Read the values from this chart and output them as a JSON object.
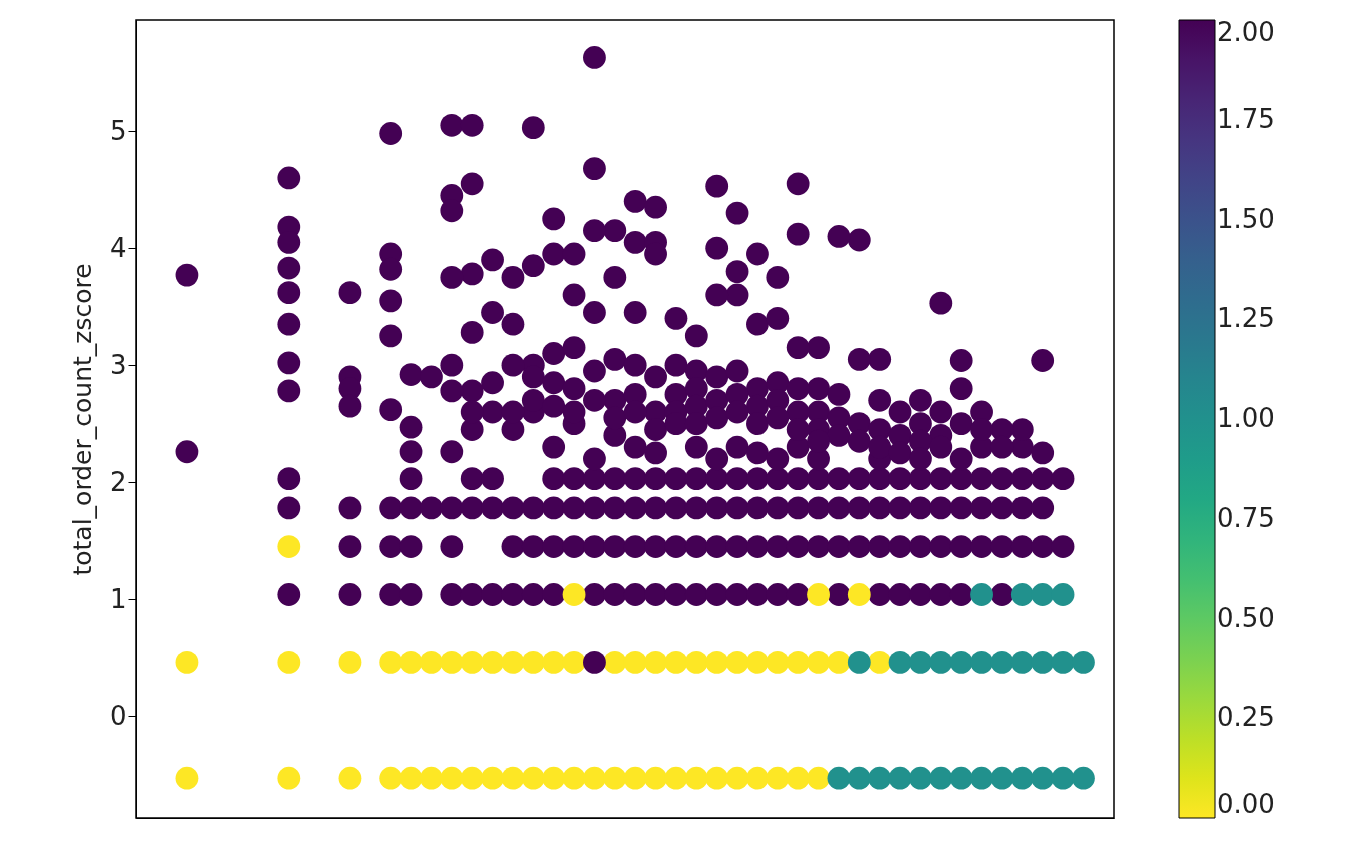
{
  "chart_data": {
    "type": "scatter",
    "ylabel": "total_order_count_zscore",
    "categories": [
      null,
      null,
      null,
      null,
      null,
      null,
      null,
      null,
      null,
      null,
      null,
      null,
      null,
      null,
      null,
      null,
      null,
      null,
      null,
      null,
      null,
      null,
      null,
      null,
      null,
      null,
      null,
      null,
      null,
      null,
      null,
      null,
      null,
      null,
      null,
      null,
      null,
      null,
      null,
      null,
      null,
      null,
      null,
      null,
      null,
      null,
      null,
      null
    ],
    "ylim": [
      -0.87,
      5.95
    ],
    "yticks": [
      0,
      1,
      2,
      3,
      4,
      5
    ],
    "grid": false,
    "marker": "circle",
    "tick_labels": "y",
    "clim": [
      0,
      2
    ],
    "cticks": [
      {
        "value": 0,
        "label": "0.00"
      },
      {
        "value": 0.25,
        "label": "0.25"
      },
      {
        "value": 0.5,
        "label": "0.50"
      },
      {
        "value": 0.75,
        "label": "0.75"
      },
      {
        "value": 1,
        "label": "1.00"
      },
      {
        "value": 1.25,
        "label": "1.25"
      },
      {
        "value": 1.5,
        "label": "1.50"
      },
      {
        "value": 1.75,
        "label": "1.75"
      },
      {
        "value": 2,
        "label": "2.00"
      }
    ],
    "series": [
      {
        "values": [
          null,
          null,
          -0.53,
          null,
          null,
          null,
          null,
          -0.53,
          null,
          null,
          -0.53,
          null,
          -0.53,
          -0.53,
          -0.53,
          -0.53,
          -0.53,
          -0.53,
          -0.53,
          -0.53,
          -0.53,
          -0.53,
          -0.53,
          -0.53,
          -0.53,
          -0.53,
          -0.53,
          -0.53,
          -0.53,
          -0.53,
          -0.53,
          -0.53,
          -0.53,
          -0.53,
          null,
          null,
          null,
          null,
          null,
          null,
          null,
          null,
          null,
          null,
          null,
          null,
          null,
          null
        ],
        "cvalues": [
          null,
          null,
          0,
          null,
          null,
          null,
          null,
          0,
          null,
          null,
          0,
          null,
          0,
          0,
          0,
          0,
          0,
          0,
          0,
          0,
          0,
          0,
          0,
          0,
          0,
          0,
          0,
          0,
          0,
          0,
          0,
          0,
          0,
          0,
          null,
          null,
          null,
          null,
          null,
          null,
          null,
          null,
          null,
          null,
          null,
          null,
          null,
          null
        ]
      },
      {
        "values": [
          null,
          null,
          null,
          null,
          null,
          null,
          null,
          null,
          null,
          null,
          null,
          null,
          null,
          null,
          null,
          null,
          null,
          null,
          null,
          null,
          null,
          null,
          null,
          null,
          null,
          null,
          null,
          null,
          null,
          null,
          null,
          null,
          null,
          null,
          -0.53,
          -0.53,
          -0.53,
          -0.53,
          -0.53,
          -0.53,
          -0.53,
          -0.53,
          -0.53,
          -0.53,
          -0.53,
          -0.53,
          -0.53,
          null
        ],
        "cvalues": [
          null,
          null,
          null,
          null,
          null,
          null,
          null,
          null,
          null,
          null,
          null,
          null,
          null,
          null,
          null,
          null,
          null,
          null,
          null,
          null,
          null,
          null,
          null,
          null,
          null,
          null,
          null,
          null,
          null,
          null,
          null,
          null,
          null,
          null,
          1,
          1,
          1,
          1,
          1,
          1,
          1,
          1,
          1,
          1,
          1,
          1,
          1,
          null
        ]
      },
      {
        "values": [
          null,
          null,
          0.46,
          null,
          null,
          null,
          null,
          0.46,
          null,
          null,
          0.46,
          null,
          0.46,
          0.46,
          0.46,
          0.46,
          0.46,
          0.46,
          0.46,
          0.46,
          0.46,
          0.46,
          null,
          0.46,
          0.46,
          0.46,
          0.46,
          0.46,
          0.46,
          0.46,
          0.46,
          0.46,
          0.46,
          0.46,
          0.46,
          null,
          0.46,
          null,
          null,
          null,
          null,
          null,
          null,
          null,
          null,
          null,
          null,
          null
        ],
        "cvalues": [
          null,
          null,
          0,
          null,
          null,
          null,
          null,
          0,
          null,
          null,
          0,
          null,
          0,
          0,
          0,
          0,
          0,
          0,
          0,
          0,
          0,
          0,
          null,
          0,
          0,
          0,
          0,
          0,
          0,
          0,
          0,
          0,
          0,
          0,
          0,
          null,
          0,
          null,
          null,
          null,
          null,
          null,
          null,
          null,
          null,
          null,
          null,
          null
        ]
      },
      {
        "values": [
          null,
          null,
          null,
          null,
          null,
          null,
          null,
          null,
          null,
          null,
          null,
          null,
          null,
          null,
          null,
          null,
          null,
          null,
          null,
          null,
          null,
          null,
          0.46,
          null,
          null,
          null,
          null,
          null,
          null,
          null,
          null,
          null,
          null,
          null,
          null,
          null,
          null,
          null,
          null,
          null,
          null,
          null,
          null,
          null,
          null,
          null,
          null,
          null
        ],
        "cvalues": [
          null,
          null,
          null,
          null,
          null,
          null,
          null,
          null,
          null,
          null,
          null,
          null,
          null,
          null,
          null,
          null,
          null,
          null,
          null,
          null,
          null,
          null,
          2,
          null,
          null,
          null,
          null,
          null,
          null,
          null,
          null,
          null,
          null,
          null,
          null,
          null,
          null,
          null,
          null,
          null,
          null,
          null,
          null,
          null,
          null,
          null,
          null,
          null
        ]
      },
      {
        "values": [
          null,
          null,
          null,
          null,
          null,
          null,
          null,
          null,
          null,
          null,
          null,
          null,
          null,
          null,
          null,
          null,
          null,
          null,
          null,
          null,
          null,
          null,
          null,
          null,
          null,
          null,
          null,
          null,
          null,
          null,
          null,
          null,
          null,
          null,
          null,
          0.46,
          null,
          0.46,
          0.46,
          0.46,
          0.46,
          0.46,
          0.46,
          0.46,
          0.46,
          0.46,
          0.46,
          null
        ],
        "cvalues": [
          null,
          null,
          null,
          null,
          null,
          null,
          null,
          null,
          null,
          null,
          null,
          null,
          null,
          null,
          null,
          null,
          null,
          null,
          null,
          null,
          null,
          null,
          null,
          null,
          null,
          null,
          null,
          null,
          null,
          null,
          null,
          null,
          null,
          null,
          null,
          1,
          null,
          1,
          1,
          1,
          1,
          1,
          1,
          1,
          1,
          1,
          1,
          null
        ]
      },
      {
        "values": [
          null,
          null,
          null,
          null,
          null,
          null,
          null,
          1.04,
          null,
          null,
          1.04,
          null,
          1.04,
          1.04,
          null,
          1.04,
          1.04,
          1.04,
          1.04,
          1.04,
          1.04,
          null,
          1.04,
          1.04,
          1.04,
          1.04,
          1.04,
          1.04,
          1.04,
          1.04,
          1.04,
          1.04,
          1.04,
          null,
          1.04,
          null,
          1.04,
          1.04,
          1.04,
          1.04,
          1.04,
          null,
          1.04,
          null,
          null,
          null,
          null,
          null
        ],
        "cvalues": [
          null,
          null,
          null,
          null,
          null,
          null,
          null,
          2,
          null,
          null,
          2,
          null,
          2,
          2,
          null,
          2,
          2,
          2,
          2,
          2,
          2,
          null,
          2,
          2,
          2,
          2,
          2,
          2,
          2,
          2,
          2,
          2,
          2,
          null,
          2,
          null,
          2,
          2,
          2,
          2,
          2,
          null,
          2,
          null,
          null,
          null,
          null,
          null
        ]
      },
      {
        "values": [
          null,
          null,
          null,
          null,
          null,
          null,
          null,
          null,
          null,
          null,
          null,
          null,
          null,
          null,
          null,
          null,
          null,
          null,
          null,
          null,
          null,
          1.04,
          null,
          null,
          null,
          null,
          null,
          null,
          null,
          null,
          null,
          null,
          null,
          1.04,
          null,
          1.04,
          null,
          null,
          null,
          null,
          null,
          null,
          null,
          null,
          null,
          null,
          null,
          null
        ],
        "cvalues": [
          null,
          null,
          null,
          null,
          null,
          null,
          null,
          null,
          null,
          null,
          null,
          null,
          null,
          null,
          null,
          null,
          null,
          null,
          null,
          null,
          null,
          0,
          null,
          null,
          null,
          null,
          null,
          null,
          null,
          null,
          null,
          null,
          null,
          0,
          null,
          0,
          null,
          null,
          null,
          null,
          null,
          null,
          null,
          null,
          null,
          null,
          null,
          null
        ]
      },
      {
        "values": [
          null,
          null,
          null,
          null,
          null,
          null,
          null,
          null,
          null,
          null,
          null,
          null,
          null,
          null,
          null,
          null,
          null,
          null,
          null,
          null,
          null,
          null,
          null,
          null,
          null,
          null,
          null,
          null,
          null,
          null,
          null,
          null,
          null,
          null,
          null,
          null,
          null,
          null,
          null,
          null,
          null,
          1.04,
          null,
          1.04,
          1.04,
          1.04,
          null,
          null
        ],
        "cvalues": [
          null,
          null,
          null,
          null,
          null,
          null,
          null,
          null,
          null,
          null,
          null,
          null,
          null,
          null,
          null,
          null,
          null,
          null,
          null,
          null,
          null,
          null,
          null,
          null,
          null,
          null,
          null,
          null,
          null,
          null,
          null,
          null,
          null,
          null,
          null,
          null,
          null,
          null,
          null,
          null,
          null,
          1,
          null,
          1,
          1,
          1,
          null,
          null
        ]
      },
      {
        "values": [
          null,
          null,
          null,
          null,
          null,
          null,
          null,
          1.45,
          null,
          null,
          null,
          null,
          null,
          null,
          null,
          null,
          null,
          null,
          null,
          null,
          null,
          null,
          null,
          null,
          null,
          null,
          null,
          null,
          null,
          null,
          null,
          null,
          null,
          null,
          null,
          null,
          null,
          null,
          null,
          null,
          null,
          null,
          null,
          null,
          null,
          null,
          null,
          null
        ],
        "cvalues": [
          null,
          null,
          null,
          null,
          null,
          null,
          null,
          0,
          null,
          null,
          null,
          null,
          null,
          null,
          null,
          null,
          null,
          null,
          null,
          null,
          null,
          null,
          null,
          null,
          null,
          null,
          null,
          null,
          null,
          null,
          null,
          null,
          null,
          null,
          null,
          null,
          null,
          null,
          null,
          null,
          null,
          null,
          null,
          null,
          null,
          null,
          null,
          null
        ]
      },
      {
        "values": [
          null,
          null,
          null,
          null,
          null,
          null,
          null,
          null,
          null,
          null,
          1.45,
          null,
          1.45,
          1.45,
          null,
          1.45,
          null,
          null,
          1.45,
          1.45,
          1.45,
          1.45,
          1.45,
          1.45,
          1.45,
          1.45,
          1.45,
          1.45,
          1.45,
          1.45,
          1.45,
          1.45,
          1.45,
          1.45,
          1.45,
          1.45,
          1.45,
          1.45,
          1.45,
          1.45,
          1.45,
          1.45,
          1.45,
          1.45,
          1.45,
          1.45,
          null,
          null
        ],
        "cvalues": [
          null,
          null,
          null,
          null,
          null,
          null,
          null,
          null,
          null,
          null,
          2,
          null,
          2,
          2,
          null,
          2,
          null,
          null,
          2,
          2,
          2,
          2,
          2,
          2,
          2,
          2,
          2,
          2,
          2,
          2,
          2,
          2,
          2,
          2,
          2,
          2,
          2,
          2,
          2,
          2,
          2,
          2,
          2,
          2,
          2,
          2,
          null,
          null
        ]
      },
      {
        "values": [
          null,
          null,
          null,
          null,
          null,
          null,
          null,
          1.78,
          null,
          null,
          1.78,
          null,
          1.78,
          1.78,
          1.78,
          1.78,
          1.78,
          1.78,
          1.78,
          1.78,
          1.78,
          1.78,
          1.78,
          1.78,
          1.78,
          1.78,
          1.78,
          1.78,
          1.78,
          1.78,
          1.78,
          1.78,
          1.78,
          1.78,
          1.78,
          1.78,
          1.78,
          1.78,
          1.78,
          1.78,
          1.78,
          1.78,
          1.78,
          1.78,
          1.78,
          null,
          null,
          null
        ],
        "cvalues": [
          null,
          null,
          null,
          null,
          null,
          null,
          null,
          2,
          null,
          null,
          2,
          null,
          2,
          2,
          2,
          2,
          2,
          2,
          2,
          2,
          2,
          2,
          2,
          2,
          2,
          2,
          2,
          2,
          2,
          2,
          2,
          2,
          2,
          2,
          2,
          2,
          2,
          2,
          2,
          2,
          2,
          2,
          2,
          2,
          2,
          null,
          null,
          null
        ]
      },
      {
        "values": [
          null,
          null,
          null,
          null,
          null,
          null,
          null,
          2.03,
          null,
          null,
          null,
          null,
          null,
          2.03,
          null,
          null,
          2.03,
          2.03,
          null,
          null,
          2.03,
          2.03,
          2.03,
          2.03,
          2.03,
          2.03,
          2.03,
          2.03,
          2.03,
          2.03,
          2.03,
          2.03,
          2.03,
          2.03,
          2.03,
          2.03,
          2.03,
          2.03,
          2.03,
          2.03,
          2.03,
          2.03,
          2.03,
          2.03,
          2.03,
          2.03,
          null,
          null
        ],
        "cvalues": [
          null,
          null,
          null,
          null,
          null,
          null,
          null,
          2,
          null,
          null,
          null,
          null,
          null,
          2,
          null,
          null,
          2,
          2,
          null,
          null,
          2,
          2,
          2,
          2,
          2,
          2,
          2,
          2,
          2,
          2,
          2,
          2,
          2,
          2,
          2,
          2,
          2,
          2,
          2,
          2,
          2,
          2,
          2,
          2,
          2,
          2,
          null,
          null
        ]
      },
      {
        "values": [
          null,
          null,
          2.26,
          null,
          null,
          null,
          null,
          3.02,
          null,
          null,
          null,
          null,
          null,
          2.26,
          null,
          2.26,
          2.45,
          null,
          2.45,
          2.6,
          2.3,
          2.5,
          2.2,
          2.4,
          2.3,
          2.25,
          null,
          2.3,
          2.2,
          2.3,
          2.25,
          2.2,
          2.3,
          2.2,
          null,
          null,
          2.2,
          null,
          null,
          2.4,
          2.2,
          2.3,
          null,
          2.3,
          null,
          null,
          null,
          null
        ],
        "cvalues": [
          null,
          null,
          2,
          null,
          null,
          null,
          null,
          2,
          null,
          null,
          null,
          null,
          null,
          2,
          null,
          2,
          2,
          null,
          2,
          2,
          2,
          2,
          2,
          2,
          2,
          2,
          null,
          2,
          2,
          2,
          2,
          2,
          2,
          2,
          null,
          null,
          2,
          null,
          null,
          2,
          2,
          2,
          null,
          2,
          null,
          null,
          null,
          null
        ]
      },
      {
        "values": [
          null,
          null,
          3.77,
          null,
          null,
          null,
          null,
          4.6,
          null,
          null,
          3.62,
          null,
          4.98,
          null,
          null,
          5.05,
          5.05,
          null,
          null,
          5.03,
          4.25,
          null,
          5.63,
          null,
          4.4,
          4.35,
          null,
          null,
          4.53,
          4.3,
          null,
          null,
          4.55,
          null,
          null,
          4.07,
          null,
          null,
          null,
          3.53,
          3.04,
          null,
          null,
          2.45,
          3.04,
          null,
          null,
          null
        ],
        "cvalues": [
          null,
          null,
          2,
          null,
          null,
          null,
          null,
          2,
          null,
          null,
          2,
          null,
          2,
          null,
          null,
          2,
          2,
          null,
          null,
          2,
          2,
          null,
          2,
          null,
          2,
          2,
          null,
          null,
          2,
          2,
          null,
          null,
          2,
          null,
          null,
          2,
          null,
          null,
          null,
          2,
          2,
          null,
          null,
          2,
          2,
          null,
          null,
          null
        ]
      },
      {
        "values": [
          null,
          null,
          null,
          null,
          null,
          null,
          null,
          4.18,
          null,
          null,
          2.9,
          null,
          3.95,
          2.92,
          2.9,
          4.45,
          4.55,
          3.9,
          3.75,
          3.85,
          3.95,
          3.95,
          4.68,
          4.15,
          4.05,
          4.05,
          3.4,
          3.25,
          4.0,
          3.6,
          3.95,
          3.75,
          4.12,
          3.15,
          4.1,
          null,
          3.05,
          null,
          2.7,
          null,
          2.8,
          2.6,
          2.45,
          null,
          2.25,
          null,
          null,
          null
        ],
        "cvalues": [
          null,
          null,
          null,
          null,
          null,
          null,
          null,
          2,
          null,
          null,
          2,
          null,
          2,
          2,
          2,
          2,
          2,
          2,
          2,
          2,
          2,
          2,
          2,
          2,
          2,
          2,
          2,
          2,
          2,
          2,
          2,
          2,
          2,
          2,
          2,
          null,
          2,
          null,
          2,
          null,
          2,
          2,
          2,
          null,
          2,
          null,
          null,
          null
        ]
      },
      {
        "values": [
          null,
          null,
          null,
          null,
          null,
          null,
          null,
          4.05,
          null,
          null,
          2.8,
          null,
          3.82,
          null,
          null,
          4.32,
          3.78,
          3.45,
          3.35,
          3.0,
          3.1,
          3.6,
          4.15,
          3.75,
          3.45,
          3.95,
          3.0,
          2.95,
          3.6,
          3.8,
          3.35,
          3.4,
          3.15,
          2.8,
          2.75,
          3.05,
          2.7,
          2.6,
          2.5,
          2.6,
          2.5,
          2.45,
          2.3,
          null,
          null,
          null,
          null,
          null
        ],
        "cvalues": [
          null,
          null,
          null,
          null,
          null,
          null,
          null,
          2,
          null,
          null,
          2,
          null,
          2,
          null,
          null,
          2,
          2,
          2,
          2,
          2,
          2,
          2,
          2,
          2,
          2,
          2,
          2,
          2,
          2,
          2,
          2,
          2,
          2,
          2,
          2,
          2,
          2,
          2,
          2,
          2,
          2,
          2,
          2,
          null,
          null,
          null,
          null,
          null
        ]
      },
      {
        "values": [
          null,
          null,
          null,
          null,
          null,
          null,
          null,
          3.83,
          null,
          null,
          2.65,
          null,
          3.55,
          null,
          null,
          3.75,
          3.28,
          2.85,
          3.0,
          2.9,
          2.85,
          3.15,
          3.45,
          3.05,
          3.0,
          2.9,
          2.75,
          2.8,
          2.9,
          2.95,
          2.8,
          2.85,
          2.8,
          2.6,
          2.55,
          2.5,
          2.45,
          2.4,
          2.35,
          2.3,
          null,
          null,
          null,
          null,
          null,
          null,
          null,
          null
        ],
        "cvalues": [
          null,
          null,
          null,
          null,
          null,
          null,
          null,
          2,
          null,
          null,
          2,
          null,
          2,
          null,
          null,
          2,
          2,
          2,
          2,
          2,
          2,
          2,
          2,
          2,
          2,
          2,
          2,
          2,
          2,
          2,
          2,
          2,
          2,
          2,
          2,
          2,
          2,
          2,
          2,
          2,
          null,
          null,
          null,
          null,
          null,
          null,
          null,
          null
        ]
      },
      {
        "values": [
          null,
          null,
          null,
          null,
          null,
          null,
          null,
          3.62,
          null,
          null,
          null,
          null,
          3.25,
          null,
          null,
          3.0,
          2.78,
          2.6,
          2.6,
          2.7,
          2.65,
          2.8,
          2.95,
          2.7,
          2.75,
          2.6,
          2.6,
          2.65,
          2.7,
          2.75,
          2.65,
          2.7,
          2.6,
          2.45,
          2.4,
          2.35,
          2.3,
          2.25,
          2.2,
          null,
          null,
          null,
          null,
          null,
          null,
          null,
          null,
          null
        ],
        "cvalues": [
          null,
          null,
          null,
          null,
          null,
          null,
          null,
          2,
          null,
          null,
          null,
          null,
          2,
          null,
          null,
          2,
          2,
          2,
          2,
          2,
          2,
          2,
          2,
          2,
          2,
          2,
          2,
          2,
          2,
          2,
          2,
          2,
          2,
          2,
          2,
          2,
          2,
          2,
          2,
          null,
          null,
          null,
          null,
          null,
          null,
          null,
          null,
          null
        ]
      },
      {
        "values": [
          null,
          null,
          null,
          null,
          null,
          null,
          null,
          3.35,
          null,
          null,
          null,
          null,
          2.62,
          null,
          null,
          2.78,
          2.6,
          null,
          null,
          null,
          null,
          2.6,
          2.7,
          2.55,
          2.6,
          2.45,
          2.5,
          2.5,
          2.55,
          2.6,
          2.5,
          2.55,
          2.45,
          2.35,
          null,
          null,
          null,
          null,
          null,
          null,
          null,
          null,
          null,
          null,
          null,
          null,
          null,
          null
        ],
        "cvalues": [
          null,
          null,
          null,
          null,
          null,
          null,
          null,
          2,
          null,
          null,
          null,
          null,
          2,
          null,
          null,
          2,
          2,
          null,
          null,
          null,
          null,
          2,
          2,
          2,
          2,
          2,
          2,
          2,
          2,
          2,
          2,
          2,
          2,
          2,
          null,
          null,
          null,
          null,
          null,
          null,
          null,
          null,
          null,
          null,
          null,
          null,
          null,
          null
        ]
      },
      {
        "values": [
          null,
          null,
          null,
          null,
          null,
          null,
          null,
          2.78,
          null,
          null,
          null,
          null,
          null,
          2.47,
          null,
          null,
          null,
          null,
          null,
          null,
          null,
          null,
          null,
          null,
          null,
          null,
          null,
          null,
          null,
          null,
          null,
          null,
          null,
          null,
          null,
          null,
          null,
          null,
          null,
          null,
          null,
          null,
          null,
          null,
          null,
          null,
          null,
          null
        ],
        "cvalues": [
          null,
          null,
          null,
          null,
          null,
          null,
          null,
          2,
          null,
          null,
          null,
          null,
          null,
          2,
          null,
          null,
          null,
          null,
          null,
          null,
          null,
          null,
          null,
          null,
          null,
          null,
          null,
          null,
          null,
          null,
          null,
          null,
          null,
          null,
          null,
          null,
          null,
          null,
          null,
          null,
          null,
          null,
          null,
          null,
          null,
          null,
          null,
          null
        ]
      }
    ]
  }
}
